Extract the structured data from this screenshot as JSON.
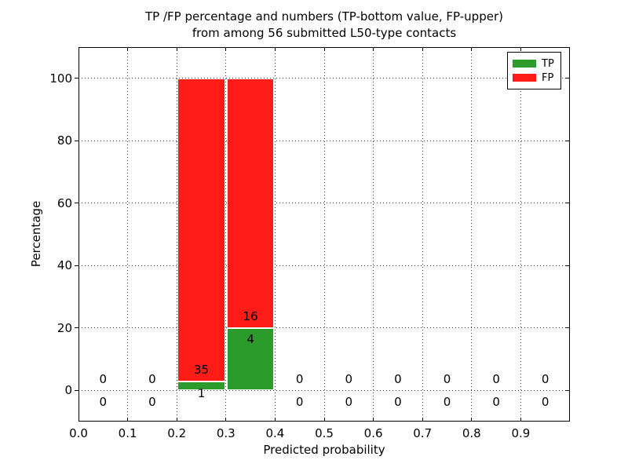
{
  "title": {
    "line1": "TP /FP percentage and numbers (TP-bottom value, FP-upper)",
    "line2": "from among 56 submitted L50-type contacts"
  },
  "chart_data": {
    "type": "bar",
    "stacked": true,
    "title": "TP /FP percentage and numbers (TP-bottom value, FP-upper)\nfrom among 56 submitted L50-type contacts",
    "title_lines": [
      "TP /FP percentage and numbers (TP-bottom value, FP-upper)",
      "from among 56 submitted L50-type contacts"
    ],
    "xlabel": "Predicted probability",
    "ylabel": "Percentage",
    "xlim": [
      0.0,
      1.0
    ],
    "ylim": [
      -10,
      110
    ],
    "xticks": [
      "0.0",
      "0.1",
      "0.2",
      "0.3",
      "0.4",
      "0.5",
      "0.6",
      "0.7",
      "0.8",
      "0.9"
    ],
    "yticks": [
      0,
      20,
      40,
      60,
      80,
      100
    ],
    "grid": "dotted",
    "legend": {
      "position": "upper right",
      "entries": [
        {
          "label": "TP",
          "color": "#2b9b2b"
        },
        {
          "label": "FP",
          "color": "#ff1c16"
        }
      ]
    },
    "bins": [
      {
        "range": [
          0.0,
          0.1
        ],
        "tp_count": 0,
        "fp_count": 0,
        "tp_pct": 0,
        "fp_pct": 0
      },
      {
        "range": [
          0.1,
          0.2
        ],
        "tp_count": 0,
        "fp_count": 0,
        "tp_pct": 0,
        "fp_pct": 0
      },
      {
        "range": [
          0.2,
          0.3
        ],
        "tp_count": 1,
        "fp_count": 35,
        "tp_pct": 2.78,
        "fp_pct": 97.22
      },
      {
        "range": [
          0.3,
          0.4
        ],
        "tp_count": 4,
        "fp_count": 16,
        "tp_pct": 20.0,
        "fp_pct": 80.0
      },
      {
        "range": [
          0.4,
          0.5
        ],
        "tp_count": 0,
        "fp_count": 0,
        "tp_pct": 0,
        "fp_pct": 0
      },
      {
        "range": [
          0.5,
          0.6
        ],
        "tp_count": 0,
        "fp_count": 0,
        "tp_pct": 0,
        "fp_pct": 0
      },
      {
        "range": [
          0.6,
          0.7
        ],
        "tp_count": 0,
        "fp_count": 0,
        "tp_pct": 0,
        "fp_pct": 0
      },
      {
        "range": [
          0.7,
          0.8
        ],
        "tp_count": 0,
        "fp_count": 0,
        "tp_pct": 0,
        "fp_pct": 0
      },
      {
        "range": [
          0.8,
          0.9
        ],
        "tp_count": 0,
        "fp_count": 0,
        "tp_pct": 0,
        "fp_pct": 0
      },
      {
        "range": [
          0.9,
          1.0
        ],
        "tp_count": 0,
        "fp_count": 0,
        "tp_pct": 0,
        "fp_pct": 0
      }
    ]
  }
}
